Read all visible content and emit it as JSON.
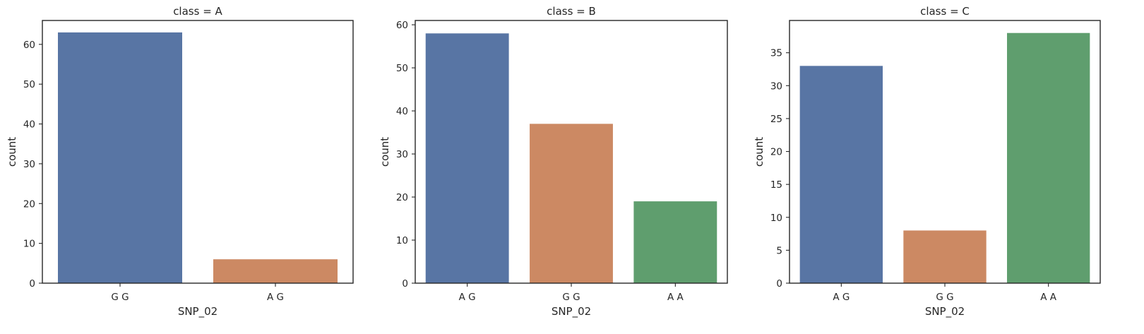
{
  "chart_data": [
    {
      "type": "bar",
      "title": "class = A",
      "xlabel": "SNP_02",
      "ylabel": "count",
      "categories": [
        "G G",
        "A G"
      ],
      "values": [
        63,
        6
      ],
      "colors": [
        "#5875a4",
        "#cc8963"
      ],
      "ylim": [
        0,
        66
      ],
      "yticks": [
        0,
        10,
        20,
        30,
        40,
        50,
        60
      ],
      "grid": false
    },
    {
      "type": "bar",
      "title": "class = B",
      "xlabel": "SNP_02",
      "ylabel": "count",
      "categories": [
        "A G",
        "G G",
        "A A"
      ],
      "values": [
        58,
        37,
        19
      ],
      "colors": [
        "#5875a4",
        "#cc8963",
        "#5f9e6e"
      ],
      "ylim": [
        0,
        61
      ],
      "yticks": [
        0,
        10,
        20,
        30,
        40,
        50,
        60
      ],
      "grid": false
    },
    {
      "type": "bar",
      "title": "class = C",
      "xlabel": "SNP_02",
      "ylabel": "count",
      "categories": [
        "A G",
        "G G",
        "A A"
      ],
      "values": [
        33,
        8,
        38
      ],
      "colors": [
        "#5875a4",
        "#cc8963",
        "#5f9e6e"
      ],
      "ylim": [
        0,
        39.9
      ],
      "yticks": [
        0,
        5,
        10,
        15,
        20,
        25,
        30,
        35
      ],
      "grid": false
    }
  ]
}
